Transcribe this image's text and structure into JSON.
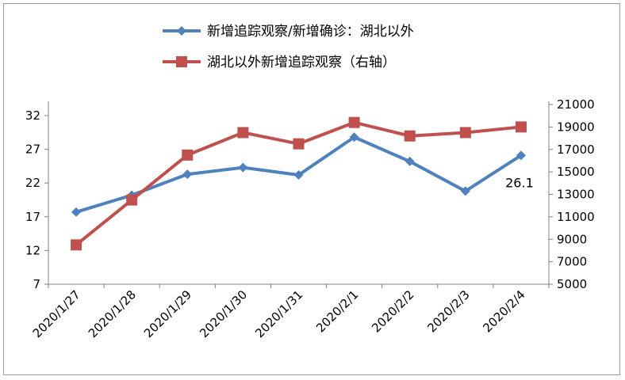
{
  "chart_data": {
    "type": "line",
    "categories": [
      "2020/1/27",
      "2020/1/28",
      "2020/1/29",
      "2020/1/30",
      "2020/1/31",
      "2020/2/1",
      "2020/2/2",
      "2020/2/3",
      "2020/2/4"
    ],
    "series": [
      {
        "name": "新增追踪观察/新增确诊：湖北以外",
        "axis": "left",
        "color": "#4F81BD",
        "marker": "diamond",
        "values": [
          17.7,
          20.2,
          23.3,
          24.3,
          23.2,
          28.8,
          25.2,
          20.8,
          26.1
        ]
      },
      {
        "name": "湖北以外新增追踪观察（右轴）",
        "axis": "right",
        "color": "#C0504D",
        "marker": "square",
        "values": [
          8500,
          12500,
          16500,
          18500,
          17500,
          19400,
          18200,
          18500,
          19000
        ]
      }
    ],
    "y_left": {
      "min": 7,
      "max": 32,
      "ticks": [
        7,
        12,
        17,
        22,
        27,
        32
      ]
    },
    "y_right": {
      "min": 5000,
      "max": 21000,
      "ticks": [
        5000,
        7000,
        9000,
        11000,
        13000,
        15000,
        17000,
        19000,
        21000
      ]
    },
    "annotations": [
      {
        "series": 0,
        "index": 8,
        "text": "26.1"
      }
    ],
    "legend_position": "top-center",
    "grid": false
  }
}
